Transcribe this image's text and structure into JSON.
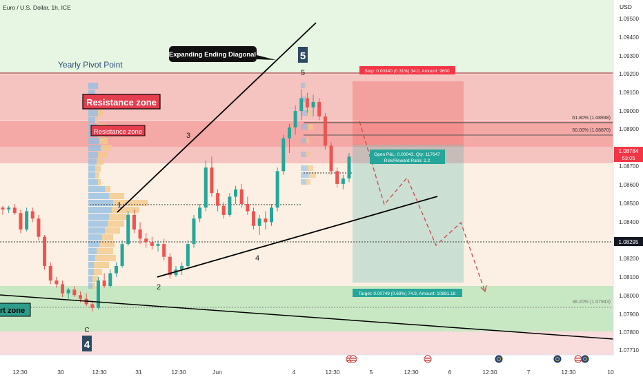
{
  "chart_data": {
    "type": "candlestick",
    "header_title": "Euro / U.S. Dollar, 1h, ICE",
    "currency": "USD",
    "y_range": [
      1.0771,
      1.0959
    ],
    "y_ticks": [
      "1.09500",
      "1.09400",
      "1.09300",
      "1.09200",
      "1.09100",
      "1.09000",
      "1.08900",
      "1.08700",
      "1.08600",
      "1.08500",
      "1.08400",
      "1.08200",
      "1.08100",
      "1.08000",
      "1.07900",
      "1.07800",
      "1.07710"
    ],
    "x_ticks": [
      "12:30",
      "30",
      "12:30",
      "31",
      "12:30",
      "Jun",
      "4",
      "12:30",
      "5",
      "12:30",
      "6",
      "12:30",
      "7",
      "12:30",
      "10"
    ],
    "last_price": "1.08784",
    "countdown": "53:05",
    "marked_price": "1.08295",
    "zones": {
      "pivot_label": "Yearly Pivot Point",
      "resistance_big": "Resistance zone",
      "resistance_small": "Resistance zone",
      "support_label": "rt zone",
      "pattern_label": "Expanding Ending Diagonal"
    },
    "wave_labels": {
      "w1": "1",
      "w2": "2",
      "w3": "3",
      "w4": "4",
      "w5": "5",
      "big5": "5",
      "c": "C",
      "big4": "4"
    },
    "fib_levels": [
      {
        "label": "61.80% (1.08938)",
        "value": 1.08938
      },
      {
        "label": "50.00% (1.08870)",
        "value": 1.0887
      },
      {
        "label": "38.20% (1.07943)",
        "value": 1.07943
      }
    ],
    "trade": {
      "stop": "Stop: 0.00340 (0.31%) 34.0, Amount: 9600",
      "pnl": "Open P&L: 0.00043, Qty: 117647",
      "rr": "Risk/Reward Ratio: 2.2",
      "target": "Target: 0.00749 (0.69%) 74.9, Amount: 10881.18"
    },
    "colors": {
      "up": "#26a69a",
      "down": "#ef5350",
      "resistance": "#ef5350",
      "support": "#4caf50",
      "price_tag": "#f23645"
    },
    "candles_ohlc": [
      [
        1.085,
        1.0851,
        1.0846,
        1.0849
      ],
      [
        1.0849,
        1.0851,
        1.0847,
        1.085
      ],
      [
        1.085,
        1.0852,
        1.0846,
        1.0847
      ],
      [
        1.0847,
        1.0849,
        1.0836,
        1.0838
      ],
      [
        1.0838,
        1.085,
        1.0837,
        1.0848
      ],
      [
        1.0848,
        1.085,
        1.0842,
        1.0844
      ],
      [
        1.0844,
        1.0846,
        1.0832,
        1.0834
      ],
      [
        1.0834,
        1.0835,
        1.0816,
        1.0818
      ],
      [
        1.0818,
        1.082,
        1.0808,
        1.081
      ],
      [
        1.081,
        1.0812,
        1.0806,
        1.0808
      ],
      [
        1.0808,
        1.081,
        1.0801,
        1.0803
      ],
      [
        1.0803,
        1.0806,
        1.08,
        1.0805
      ],
      [
        1.0805,
        1.0807,
        1.0801,
        1.0802
      ],
      [
        1.0802,
        1.0804,
        1.0798,
        1.08
      ],
      [
        1.08,
        1.0803,
        1.0796,
        1.0797
      ],
      [
        1.0797,
        1.0799,
        1.0793,
        1.0795
      ],
      [
        1.0795,
        1.0812,
        1.0794,
        1.081
      ],
      [
        1.081,
        1.0814,
        1.0806,
        1.0807
      ],
      [
        1.0807,
        1.0816,
        1.0806,
        1.0814
      ],
      [
        1.0814,
        1.082,
        1.0812,
        1.0818
      ],
      [
        1.0818,
        1.0832,
        1.0817,
        1.083
      ],
      [
        1.083,
        1.0848,
        1.0829,
        1.0846
      ],
      [
        1.0846,
        1.0849,
        1.0836,
        1.0838
      ],
      [
        1.0838,
        1.0842,
        1.083,
        1.0833
      ],
      [
        1.0833,
        1.0836,
        1.0828,
        1.0831
      ],
      [
        1.0831,
        1.0834,
        1.0827,
        1.0829
      ],
      [
        1.0829,
        1.0832,
        1.0826,
        1.083
      ],
      [
        1.083,
        1.0833,
        1.0821,
        1.0823
      ],
      [
        1.0823,
        1.0825,
        1.0811,
        1.0813
      ],
      [
        1.0813,
        1.0818,
        1.0812,
        1.0816
      ],
      [
        1.0816,
        1.082,
        1.0813,
        1.0818
      ],
      [
        1.0818,
        1.0832,
        1.0816,
        1.083
      ],
      [
        1.083,
        1.0846,
        1.0828,
        1.0844
      ],
      [
        1.0844,
        1.0852,
        1.0842,
        1.085
      ],
      [
        1.085,
        1.0876,
        1.0848,
        1.0872
      ],
      [
        1.0872,
        1.0878,
        1.0856,
        1.0858
      ],
      [
        1.0858,
        1.086,
        1.0848,
        1.0851
      ],
      [
        1.0851,
        1.0853,
        1.0844,
        1.0846
      ],
      [
        1.0846,
        1.0858,
        1.0845,
        1.0856
      ],
      [
        1.0856,
        1.0862,
        1.0852,
        1.086
      ],
      [
        1.086,
        1.0863,
        1.085,
        1.0852
      ],
      [
        1.0852,
        1.0856,
        1.0846,
        1.0848
      ],
      [
        1.0848,
        1.085,
        1.0838,
        1.084
      ],
      [
        1.084,
        1.0846,
        1.0835,
        1.0844
      ],
      [
        1.0844,
        1.0848,
        1.0838,
        1.0842
      ],
      [
        1.0842,
        1.0852,
        1.084,
        1.085
      ],
      [
        1.085,
        1.0872,
        1.0848,
        1.087
      ],
      [
        1.087,
        1.089,
        1.0868,
        1.0888
      ],
      [
        1.0888,
        1.0896,
        1.088,
        1.0894
      ],
      [
        1.0894,
        1.0906,
        1.089,
        1.0903
      ],
      [
        1.0903,
        1.0915,
        1.0898,
        1.091
      ],
      [
        1.091,
        1.0913,
        1.0902,
        1.0905
      ],
      [
        1.0905,
        1.0912,
        1.09,
        1.0908
      ],
      [
        1.0908,
        1.091,
        1.0898,
        1.09
      ],
      [
        1.09,
        1.0902,
        1.0882,
        1.0884
      ],
      [
        1.0884,
        1.0886,
        1.0868,
        1.087
      ],
      [
        1.087,
        1.0872,
        1.0861,
        1.0863
      ],
      [
        1.0863,
        1.0868,
        1.086,
        1.0866
      ],
      [
        1.0866,
        1.088,
        1.0864,
        1.0878
      ]
    ]
  }
}
